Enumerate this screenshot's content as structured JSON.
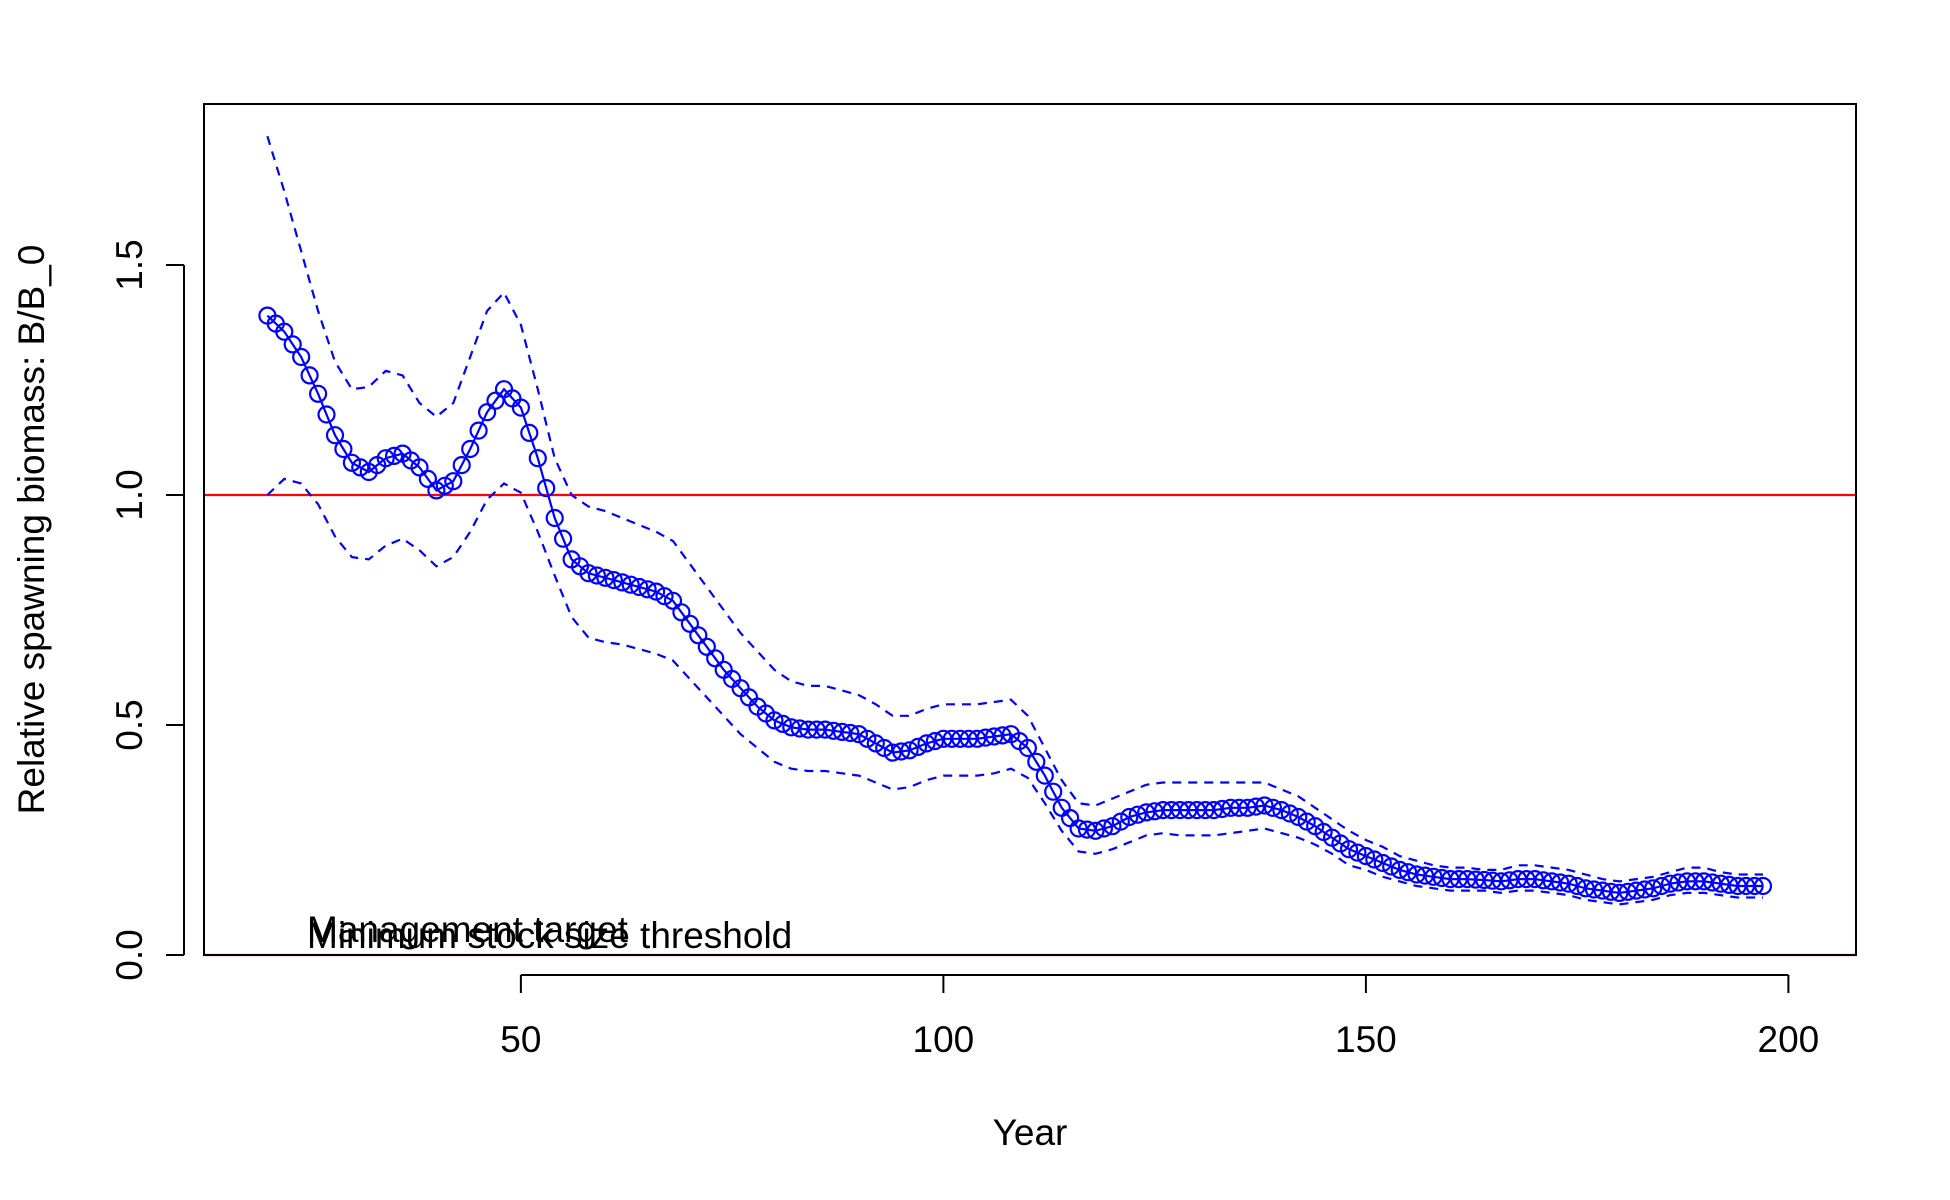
{
  "chart_data": {
    "type": "line",
    "title": "",
    "xlabel": "Year",
    "ylabel": "Relative spawning biomass: B/B_0",
    "xlim": [
      12.5,
      208
    ],
    "ylim": [
      0,
      1.85
    ],
    "x_ticks": [
      50,
      100,
      150,
      200
    ],
    "y_ticks": [
      0.0,
      0.5,
      1.0,
      1.5
    ],
    "x_tick_labels": [
      "50",
      "100",
      "150",
      "200"
    ],
    "y_tick_labels": [
      "0.0",
      "0.5",
      "1.0",
      "1.5"
    ],
    "grid": false,
    "legend": "none",
    "colors": {
      "series": "#0000ff",
      "reference": "#ff0000",
      "axes": "#000000"
    },
    "anchors": {
      "x": [
        20,
        22,
        24,
        26,
        28,
        30,
        32,
        34,
        36,
        38,
        40,
        42,
        44,
        46,
        48,
        50,
        52,
        54,
        56,
        58,
        60,
        62,
        64,
        66,
        68,
        70,
        72,
        74,
        76,
        78,
        80,
        82,
        84,
        86,
        88,
        90,
        92,
        94,
        96,
        98,
        100,
        102,
        104,
        106,
        108,
        110,
        112,
        114,
        116,
        118,
        120,
        122,
        124,
        126,
        128,
        130,
        132,
        134,
        136,
        138,
        140,
        142,
        144,
        146,
        148,
        150,
        152,
        154,
        156,
        158,
        160,
        162,
        164,
        166,
        168,
        170,
        172,
        174,
        176,
        178,
        180,
        182,
        184,
        186,
        188,
        190,
        192,
        194,
        196,
        197
      ],
      "y": [
        1.39,
        1.355,
        1.3,
        1.22,
        1.13,
        1.07,
        1.05,
        1.08,
        1.09,
        1.06,
        1.01,
        1.03,
        1.1,
        1.18,
        1.23,
        1.19,
        1.08,
        0.95,
        0.86,
        0.83,
        0.82,
        0.81,
        0.8,
        0.79,
        0.77,
        0.72,
        0.67,
        0.62,
        0.58,
        0.54,
        0.51,
        0.495,
        0.49,
        0.49,
        0.485,
        0.48,
        0.46,
        0.44,
        0.445,
        0.46,
        0.47,
        0.47,
        0.47,
        0.475,
        0.48,
        0.45,
        0.39,
        0.32,
        0.275,
        0.27,
        0.28,
        0.3,
        0.31,
        0.315,
        0.315,
        0.315,
        0.315,
        0.32,
        0.32,
        0.325,
        0.315,
        0.3,
        0.28,
        0.255,
        0.23,
        0.215,
        0.2,
        0.185,
        0.175,
        0.17,
        0.165,
        0.165,
        0.163,
        0.16,
        0.165,
        0.165,
        0.16,
        0.155,
        0.145,
        0.14,
        0.135,
        0.14,
        0.145,
        0.155,
        0.16,
        0.16,
        0.155,
        0.15,
        0.15,
        0.15
      ],
      "upper": [
        1.78,
        1.66,
        1.53,
        1.4,
        1.29,
        1.23,
        1.235,
        1.27,
        1.26,
        1.2,
        1.17,
        1.2,
        1.3,
        1.4,
        1.44,
        1.37,
        1.23,
        1.08,
        1.0,
        0.975,
        0.965,
        0.95,
        0.935,
        0.92,
        0.9,
        0.85,
        0.8,
        0.75,
        0.7,
        0.66,
        0.62,
        0.595,
        0.585,
        0.585,
        0.575,
        0.565,
        0.545,
        0.52,
        0.52,
        0.535,
        0.545,
        0.545,
        0.545,
        0.55,
        0.555,
        0.52,
        0.45,
        0.38,
        0.33,
        0.325,
        0.34,
        0.355,
        0.37,
        0.375,
        0.375,
        0.375,
        0.375,
        0.375,
        0.375,
        0.375,
        0.36,
        0.345,
        0.32,
        0.295,
        0.27,
        0.25,
        0.235,
        0.215,
        0.205,
        0.195,
        0.19,
        0.19,
        0.185,
        0.185,
        0.195,
        0.195,
        0.19,
        0.185,
        0.175,
        0.165,
        0.16,
        0.165,
        0.17,
        0.18,
        0.19,
        0.19,
        0.18,
        0.175,
        0.175,
        0.175
      ],
      "lower": [
        1.0,
        1.035,
        1.025,
        0.98,
        0.91,
        0.865,
        0.86,
        0.89,
        0.905,
        0.88,
        0.845,
        0.865,
        0.92,
        0.99,
        1.025,
        1.005,
        0.92,
        0.825,
        0.735,
        0.69,
        0.68,
        0.675,
        0.665,
        0.655,
        0.64,
        0.6,
        0.56,
        0.52,
        0.48,
        0.45,
        0.42,
        0.405,
        0.4,
        0.4,
        0.395,
        0.39,
        0.375,
        0.36,
        0.365,
        0.38,
        0.39,
        0.39,
        0.39,
        0.395,
        0.405,
        0.385,
        0.33,
        0.27,
        0.225,
        0.22,
        0.23,
        0.245,
        0.26,
        0.265,
        0.26,
        0.26,
        0.26,
        0.265,
        0.27,
        0.275,
        0.265,
        0.255,
        0.24,
        0.22,
        0.195,
        0.185,
        0.17,
        0.16,
        0.15,
        0.145,
        0.14,
        0.14,
        0.14,
        0.135,
        0.14,
        0.14,
        0.135,
        0.13,
        0.12,
        0.115,
        0.11,
        0.115,
        0.12,
        0.13,
        0.135,
        0.135,
        0.13,
        0.125,
        0.125,
        0.125
      ]
    },
    "series": [
      {
        "name": "",
        "style": "points-and-line",
        "x_range": [
          20,
          197
        ]
      },
      {
        "name": "",
        "style": "dashed",
        "role": "upper interval"
      },
      {
        "name": "",
        "style": "dashed",
        "role": "lower interval"
      }
    ],
    "reference_lines": [
      {
        "y": 1.0,
        "label": "Management target"
      },
      {
        "y": 0.0,
        "label": "Minimum stock size threshold"
      }
    ]
  }
}
